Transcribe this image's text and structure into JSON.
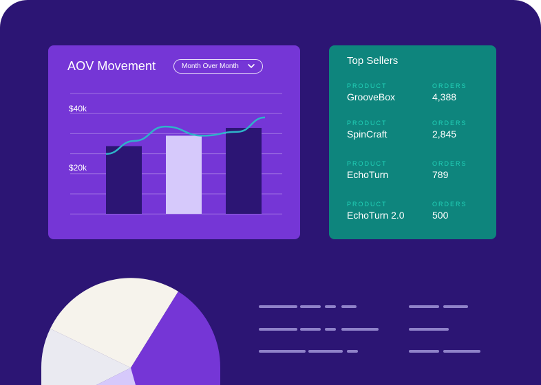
{
  "aov": {
    "title": "AOV Movement",
    "period_select": "Month Over Month",
    "y_ticks": [
      "$40k",
      "$20k"
    ]
  },
  "chart_data": {
    "type": "bar",
    "categories": [
      "",
      "",
      ""
    ],
    "values": [
      26000,
      30000,
      33000
    ],
    "trend": [
      23000,
      28000,
      33500,
      30000,
      31500,
      37000
    ],
    "ylim": [
      0,
      47000
    ],
    "bar_colors": [
      "#2c1574",
      "#d6c9fb",
      "#2c1574"
    ],
    "line_color": "#2fb3c9",
    "grid": true
  },
  "sellers": {
    "title": "Top Sellers",
    "product_label": "PRODUCT",
    "orders_label": "ORDERS",
    "items": [
      {
        "product": "GrooveBox",
        "orders": "4,388"
      },
      {
        "product": "SpinCraft",
        "orders": "2,845"
      },
      {
        "product": "EchoTurn",
        "orders": "789"
      },
      {
        "product": "EchoTurn 2.0",
        "orders": "500"
      }
    ]
  },
  "colors": {
    "background": "#2c1574",
    "aov_card": "#7536d6",
    "sellers_card": "#0e857d",
    "accent_teal": "#22d3b9"
  }
}
